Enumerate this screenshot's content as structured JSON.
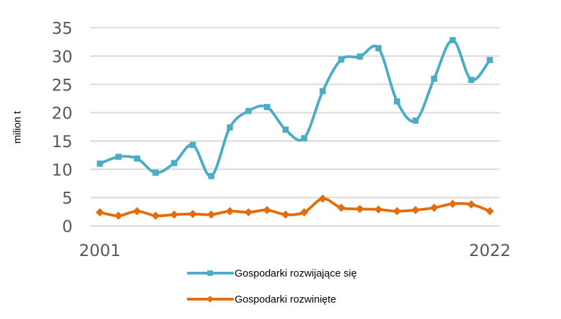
{
  "chart_data": {
    "type": "line",
    "title": "",
    "xlabel": "",
    "ylabel": "milion t",
    "ylim": [
      0,
      35
    ],
    "yticks": [
      0,
      5,
      10,
      15,
      20,
      25,
      30,
      35
    ],
    "x": [
      2001,
      2002,
      2003,
      2004,
      2005,
      2006,
      2007,
      2008,
      2009,
      2010,
      2011,
      2012,
      2013,
      2014,
      2015,
      2016,
      2017,
      2018,
      2019,
      2020,
      2021,
      2022
    ],
    "xtick_labels": [
      "2001",
      "2022"
    ],
    "grid": true,
    "smooth": true,
    "legend_position": "bottom",
    "series": [
      {
        "name": "Gospodarki rozwijające się",
        "color": "#4bacc6",
        "marker": "square",
        "values": [
          11.0,
          12.2,
          11.9,
          9.4,
          11.1,
          14.3,
          8.8,
          17.4,
          20.3,
          21.0,
          17.0,
          15.5,
          23.8,
          29.4,
          29.9,
          31.4,
          22.0,
          18.6,
          26.0,
          32.8,
          25.8,
          29.3
        ]
      },
      {
        "name": "Gospodarki rozwinięte",
        "color": "#e46c0a",
        "marker": "diamond",
        "values": [
          2.4,
          1.8,
          2.6,
          1.8,
          2.0,
          2.1,
          2.0,
          2.6,
          2.4,
          2.8,
          2.0,
          2.4,
          4.8,
          3.2,
          3.0,
          2.9,
          2.6,
          2.8,
          3.2,
          3.9,
          3.8,
          2.6
        ]
      }
    ]
  },
  "legend": {
    "items": [
      {
        "label": "Gospodarki rozwijające się"
      },
      {
        "label": "Gospodarki rozwinięte"
      }
    ]
  },
  "axis": {
    "ylabel": "milion t",
    "x_first": "2001",
    "x_last": "2022"
  }
}
